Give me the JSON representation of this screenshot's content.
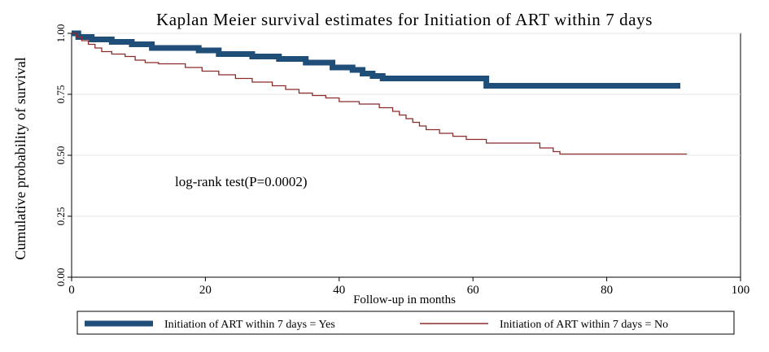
{
  "chart_data": {
    "type": "line",
    "title": "Kaplan Meier survival estimates for Initiation of ART within 7 days",
    "xlabel": "Follow-up in months",
    "ylabel": "Cumulative probability of survival",
    "xlim": [
      0,
      100
    ],
    "ylim": [
      0,
      1
    ],
    "x_ticks": [
      0,
      20,
      40,
      60,
      80,
      100
    ],
    "x_tick_labels": [
      "0",
      "20",
      "40",
      "60",
      "80",
      "100"
    ],
    "y_ticks": [
      0,
      0.25,
      0.5,
      0.75,
      1
    ],
    "y_tick_labels": [
      "0.00",
      "0.25",
      "0.50",
      "0.75",
      "1.00"
    ],
    "grid": true,
    "annotation": "log-rank test(P=0.0002)",
    "legend_position": "bottom",
    "series": [
      {
        "name": "Initiation of ART within 7 days = Yes",
        "color": "#1f4e79",
        "step": true,
        "points": [
          [
            0,
            1.0
          ],
          [
            1,
            0.985
          ],
          [
            3,
            0.975
          ],
          [
            6,
            0.965
          ],
          [
            9,
            0.955
          ],
          [
            12,
            0.94
          ],
          [
            19,
            0.93
          ],
          [
            22,
            0.915
          ],
          [
            27,
            0.905
          ],
          [
            31,
            0.895
          ],
          [
            35,
            0.88
          ],
          [
            39,
            0.86
          ],
          [
            42,
            0.85
          ],
          [
            43.5,
            0.835
          ],
          [
            45,
            0.825
          ],
          [
            46.5,
            0.815
          ],
          [
            62,
            0.785
          ],
          [
            91,
            0.785
          ]
        ]
      },
      {
        "name": "Initiation of ART within 7 days = No",
        "color": "#8b2b2b",
        "step": true,
        "points": [
          [
            0,
            1.0
          ],
          [
            0.8,
            0.985
          ],
          [
            1.5,
            0.97
          ],
          [
            2.5,
            0.955
          ],
          [
            3.5,
            0.94
          ],
          [
            4.5,
            0.925
          ],
          [
            6,
            0.915
          ],
          [
            8,
            0.905
          ],
          [
            9.5,
            0.89
          ],
          [
            11,
            0.88
          ],
          [
            13,
            0.875
          ],
          [
            17,
            0.86
          ],
          [
            19.5,
            0.845
          ],
          [
            22,
            0.83
          ],
          [
            24.5,
            0.815
          ],
          [
            27,
            0.8
          ],
          [
            30,
            0.785
          ],
          [
            32,
            0.77
          ],
          [
            34,
            0.755
          ],
          [
            36,
            0.745
          ],
          [
            38,
            0.735
          ],
          [
            40,
            0.72
          ],
          [
            43,
            0.71
          ],
          [
            46,
            0.695
          ],
          [
            48,
            0.68
          ],
          [
            49,
            0.665
          ],
          [
            50,
            0.65
          ],
          [
            51,
            0.635
          ],
          [
            52,
            0.62
          ],
          [
            53,
            0.605
          ],
          [
            55,
            0.59
          ],
          [
            57,
            0.578
          ],
          [
            59,
            0.565
          ],
          [
            62,
            0.55
          ],
          [
            70,
            0.53
          ],
          [
            72,
            0.515
          ],
          [
            73,
            0.505
          ],
          [
            92,
            0.505
          ]
        ]
      }
    ]
  }
}
